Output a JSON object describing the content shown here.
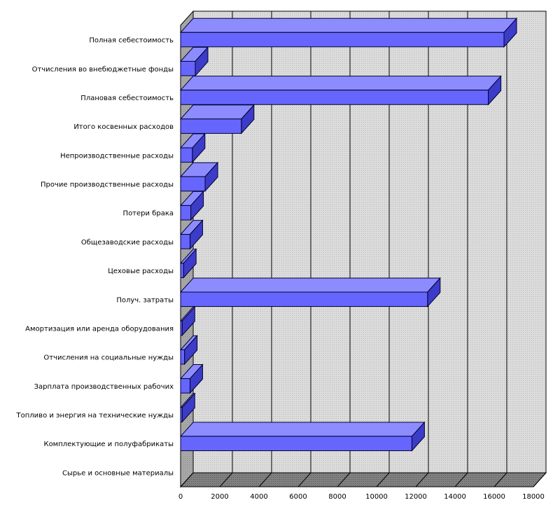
{
  "chart_data": {
    "type": "bar",
    "orientation": "horizontal",
    "three_d": true,
    "title": "",
    "xlabel": "",
    "ylabel": "",
    "xlim": [
      0,
      18000
    ],
    "ticks": [
      "0",
      "2000",
      "4000",
      "6000",
      "8000",
      "10000",
      "12000",
      "14000",
      "16000",
      "18000"
    ],
    "grid": true,
    "legend": "none",
    "categories": [
      "Полная себестоимость",
      "Отчисления во внебюджетные фонды",
      "Плановая себестоимость",
      "Итого косвенных расходов",
      "Непроизводственные расходы",
      "Прочие производственные расходы",
      "Потери брака",
      "Общезаводские расходы",
      "Цеховые расходы",
      "Получ. затраты",
      "Амортизация или аренда оборудования",
      "Отчисления на социальные нужды",
      "Зарплата производственных рабочих",
      "Топливо и энергия на технические нужды",
      "Комплектующие и полуфабрикаты",
      "Сырье и основные материалы"
    ],
    "values": [
      16500,
      750,
      15700,
      3100,
      600,
      1250,
      520,
      480,
      150,
      12600,
      80,
      200,
      480,
      80,
      11800,
      0
    ],
    "colors": {
      "bar_front": "#6666ff",
      "bar_top": "#8c8cff",
      "bar_side": "#3c3cc8",
      "bar_edge": "#000033",
      "wall": "#d9d9d9",
      "side_wall": "#a6a6a6",
      "floor": "#7f7f7f",
      "grid": "#000000"
    }
  }
}
